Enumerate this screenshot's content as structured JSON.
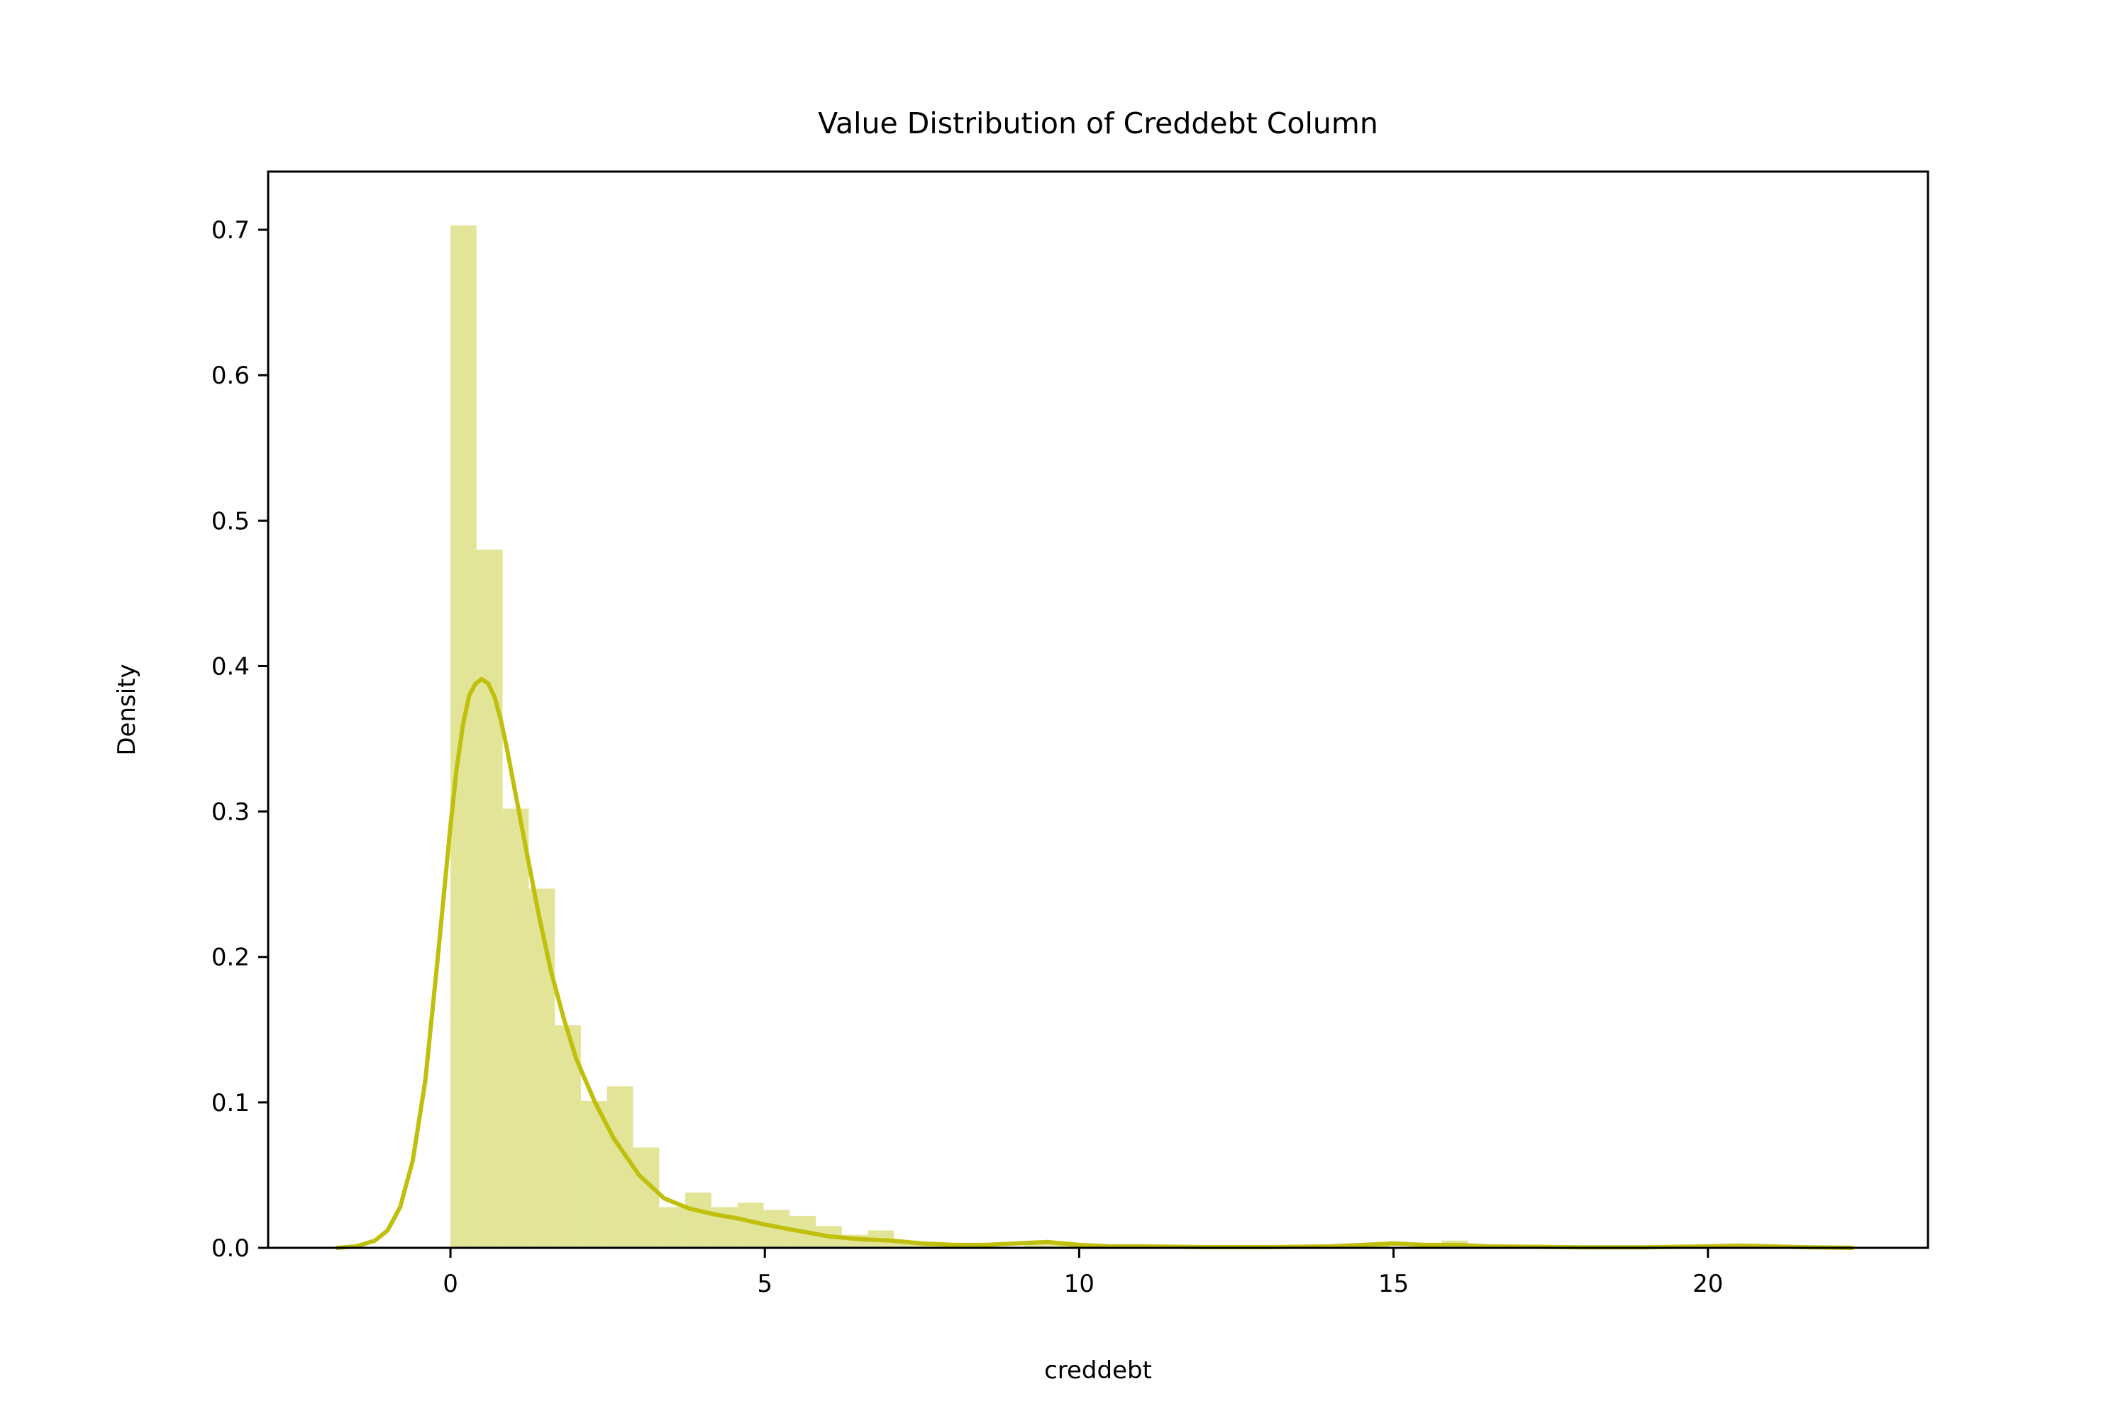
{
  "chart_data": {
    "type": "histogram",
    "title": "Value Distribution of Creddebt Column",
    "xlabel": "creddebt",
    "ylabel": "Density",
    "xlim": [
      -2.9,
      23.5
    ],
    "ylim": [
      0,
      0.74
    ],
    "x_ticks": [
      0,
      5,
      10,
      15,
      20
    ],
    "y_ticks": [
      0.0,
      0.1,
      0.2,
      0.3,
      0.4,
      0.5,
      0.6,
      0.7
    ],
    "grid": false,
    "legend": "none",
    "bar_color": "#e2e597",
    "line_color": "#bfbf0c",
    "bins": [
      {
        "x0": 0.0,
        "x1": 0.415,
        "density": 0.703
      },
      {
        "x0": 0.415,
        "x1": 0.83,
        "density": 0.48
      },
      {
        "x0": 0.83,
        "x1": 1.245,
        "density": 0.302
      },
      {
        "x0": 1.245,
        "x1": 1.66,
        "density": 0.247
      },
      {
        "x0": 1.66,
        "x1": 2.075,
        "density": 0.153
      },
      {
        "x0": 2.075,
        "x1": 2.49,
        "density": 0.101
      },
      {
        "x0": 2.49,
        "x1": 2.905,
        "density": 0.111
      },
      {
        "x0": 2.905,
        "x1": 3.32,
        "density": 0.069
      },
      {
        "x0": 3.32,
        "x1": 3.735,
        "density": 0.028
      },
      {
        "x0": 3.735,
        "x1": 4.15,
        "density": 0.038
      },
      {
        "x0": 4.15,
        "x1": 4.565,
        "density": 0.028
      },
      {
        "x0": 4.565,
        "x1": 4.98,
        "density": 0.031
      },
      {
        "x0": 4.98,
        "x1": 5.395,
        "density": 0.026
      },
      {
        "x0": 5.395,
        "x1": 5.81,
        "density": 0.022
      },
      {
        "x0": 5.81,
        "x1": 6.225,
        "density": 0.015
      },
      {
        "x0": 6.225,
        "x1": 6.64,
        "density": 0.009
      },
      {
        "x0": 6.64,
        "x1": 7.055,
        "density": 0.012
      },
      {
        "x0": 7.055,
        "x1": 7.47,
        "density": 0.005
      },
      {
        "x0": 7.47,
        "x1": 7.885,
        "density": 0.004
      },
      {
        "x0": 7.885,
        "x1": 8.3,
        "density": 0.003
      },
      {
        "x0": 8.3,
        "x1": 8.715,
        "density": 0.002
      },
      {
        "x0": 9.13,
        "x1": 9.545,
        "density": 0.003
      },
      {
        "x0": 9.545,
        "x1": 9.96,
        "density": 0.004
      },
      {
        "x0": 10.375,
        "x1": 10.79,
        "density": 0.002
      },
      {
        "x0": 14.52,
        "x1": 14.935,
        "density": 0.003
      },
      {
        "x0": 15.765,
        "x1": 16.18,
        "density": 0.005
      },
      {
        "x0": 20.75,
        "x1": 21.165,
        "density": 0.002
      }
    ],
    "kde": {
      "x": [
        -1.8,
        -1.5,
        -1.2,
        -1.0,
        -0.8,
        -0.6,
        -0.4,
        -0.2,
        0.0,
        0.1,
        0.2,
        0.3,
        0.4,
        0.5,
        0.6,
        0.7,
        0.8,
        0.9,
        1.0,
        1.2,
        1.4,
        1.6,
        1.8,
        2.0,
        2.3,
        2.6,
        3.0,
        3.4,
        3.8,
        4.2,
        4.6,
        5.0,
        5.5,
        6.0,
        6.5,
        7.0,
        7.5,
        8.0,
        8.5,
        9.0,
        9.5,
        10.0,
        10.5,
        11.0,
        12.0,
        13.0,
        14.0,
        14.5,
        15.0,
        15.5,
        16.0,
        16.5,
        17.0,
        18.0,
        19.0,
        20.0,
        20.5,
        21.0,
        21.5,
        22.3
      ],
      "y": [
        0.0,
        0.001,
        0.005,
        0.012,
        0.028,
        0.06,
        0.115,
        0.2,
        0.29,
        0.33,
        0.36,
        0.38,
        0.388,
        0.391,
        0.388,
        0.379,
        0.363,
        0.343,
        0.32,
        0.275,
        0.23,
        0.19,
        0.158,
        0.13,
        0.1,
        0.075,
        0.05,
        0.034,
        0.027,
        0.023,
        0.02,
        0.016,
        0.012,
        0.008,
        0.006,
        0.005,
        0.003,
        0.002,
        0.002,
        0.003,
        0.004,
        0.002,
        0.001,
        0.001,
        0.0005,
        0.0005,
        0.001,
        0.002,
        0.003,
        0.002,
        0.002,
        0.001,
        0.0008,
        0.0004,
        0.0004,
        0.001,
        0.0015,
        0.001,
        0.0005,
        0.0
      ]
    }
  }
}
